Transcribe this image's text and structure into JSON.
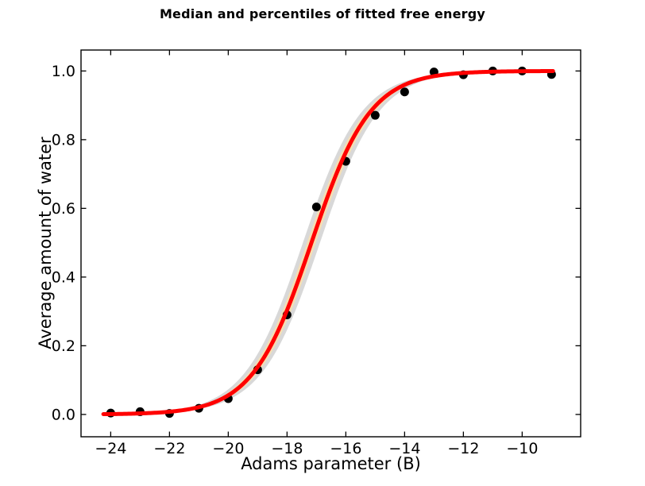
{
  "chart_data": {
    "type": "scatter",
    "title": "Median and percentiles of fitted free energy",
    "xlabel": "Adams parameter (B)",
    "ylabel": "Average amount of water",
    "xlim": [
      -25.01,
      -8.01
    ],
    "ylim": [
      -0.065,
      1.061
    ],
    "grid": false,
    "legend": null,
    "background": "#ffffff",
    "axis_color": "#000000",
    "x_ticks": {
      "values": [
        -24,
        -22,
        -20,
        -18,
        -16,
        -14,
        -12,
        -10
      ],
      "labels": [
        "−24",
        "−22",
        "−20",
        "−18",
        "−16",
        "−14",
        "−12",
        "−10"
      ]
    },
    "y_ticks": {
      "values": [
        0.0,
        0.2,
        0.4,
        0.6,
        0.8,
        1.0
      ],
      "labels": [
        "0.0",
        "0.2",
        "0.4",
        "0.6",
        "0.8",
        "1.0"
      ]
    },
    "points": {
      "x": [
        -24,
        -23,
        -22,
        -21,
        -20,
        -19,
        -18,
        -17,
        -16,
        -15,
        -14,
        -13,
        -12,
        -11,
        -10,
        -9
      ],
      "y": [
        0.004,
        0.008,
        0.003,
        0.018,
        0.046,
        0.13,
        0.29,
        0.604,
        0.737,
        0.871,
        0.939,
        0.997,
        0.989,
        1.0,
        1.0,
        0.99
      ]
    },
    "marker": {
      "color": "#000000",
      "radius": 5.5
    },
    "fit": {
      "model": "logistic",
      "x0": -17.17,
      "scale": 1.0,
      "x_range": [
        -24.25,
        -8.95
      ],
      "median": {
        "color": "#ff0000",
        "width": 5
      },
      "bands": [
        {
          "name": "outer-percentile-band",
          "shift": 0.29,
          "color": "#d8d8d8"
        },
        {
          "name": "inner-percentile-band",
          "shift": 0.15,
          "color": "#f5deb3"
        }
      ]
    }
  }
}
